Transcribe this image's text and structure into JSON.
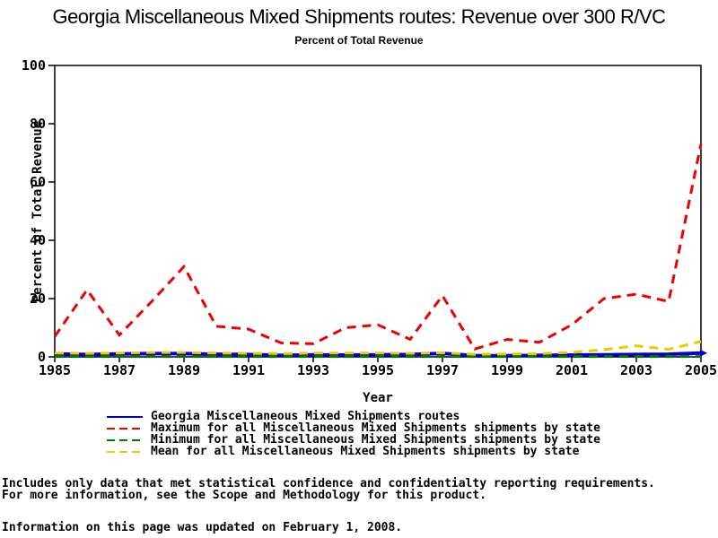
{
  "title": "Georgia Miscellaneous Mixed Shipments routes: Revenue over 300 R/VC",
  "subtitle": "Percent of Total Revenue",
  "chart_data": {
    "type": "line",
    "x": [
      1985,
      1986,
      1987,
      1988,
      1989,
      1990,
      1991,
      1992,
      1993,
      1994,
      1995,
      1996,
      1997,
      1998,
      1999,
      2000,
      2001,
      2002,
      2003,
      2004,
      2005
    ],
    "x_ticks": [
      1985,
      1987,
      1989,
      1991,
      1993,
      1995,
      1997,
      1999,
      2001,
      2003,
      2005
    ],
    "y_ticks": [
      0,
      20,
      40,
      60,
      80,
      100
    ],
    "ylim": [
      0,
      100
    ],
    "xlabel": "Year",
    "ylabel": "Percent of Total Revenue",
    "grid": false,
    "legend_position": "bottom",
    "series": [
      {
        "key": "georgia",
        "name": "Georgia Miscellaneous Mixed Shipments routes",
        "color": "#0000cd",
        "dash": "solid",
        "end_arrow": true,
        "values": [
          1.0,
          0.8,
          1.0,
          1.1,
          1.1,
          0.9,
          0.8,
          0.5,
          0.7,
          0.6,
          0.7,
          0.8,
          1.2,
          0.4,
          0.4,
          0.5,
          0.6,
          0.7,
          0.8,
          0.9,
          1.3
        ]
      },
      {
        "key": "maximum",
        "name": "Maximum for all Miscellaneous Mixed Shipments shipments by state",
        "color": "#ec0000",
        "dash": "dashed",
        "end_arrow": false,
        "values": [
          7,
          23,
          7.5,
          19,
          31,
          10.5,
          9.5,
          4.8,
          4.5,
          10,
          11,
          6,
          21,
          2.7,
          6,
          5,
          11,
          20,
          21.5,
          19,
          73
        ]
      },
      {
        "key": "minimum",
        "name": "Minimum for all Miscellaneous Mixed Shipments shipments by state",
        "color": "#007a00",
        "dash": "dashed",
        "end_arrow": false,
        "values": [
          0.1,
          0.1,
          0.1,
          0.1,
          0.1,
          0.1,
          0.1,
          0.1,
          0.1,
          0.1,
          0.1,
          0.1,
          0.1,
          0.1,
          0.1,
          0.1,
          0.1,
          0.1,
          0.1,
          0.1,
          0.1
        ]
      },
      {
        "key": "mean",
        "name": "Mean for all Miscellaneous Mixed Shipments shipments by state",
        "color": "#efc900",
        "dash": "dashed",
        "end_arrow": false,
        "values": [
          1.3,
          1.2,
          1.3,
          1.5,
          1.5,
          1.3,
          1.2,
          1.1,
          1.3,
          1.3,
          1.3,
          1.2,
          1.4,
          0.9,
          1.0,
          1.1,
          1.5,
          2.5,
          3.8,
          2.6,
          5.3
        ]
      }
    ]
  },
  "footer": {
    "line1": "Includes only data that met statistical confidence and confidentialty reporting requirements.",
    "line2": "For more information, see the Scope and Methodology for this product.",
    "line3": "Information on this page was updated on February 1, 2008."
  }
}
